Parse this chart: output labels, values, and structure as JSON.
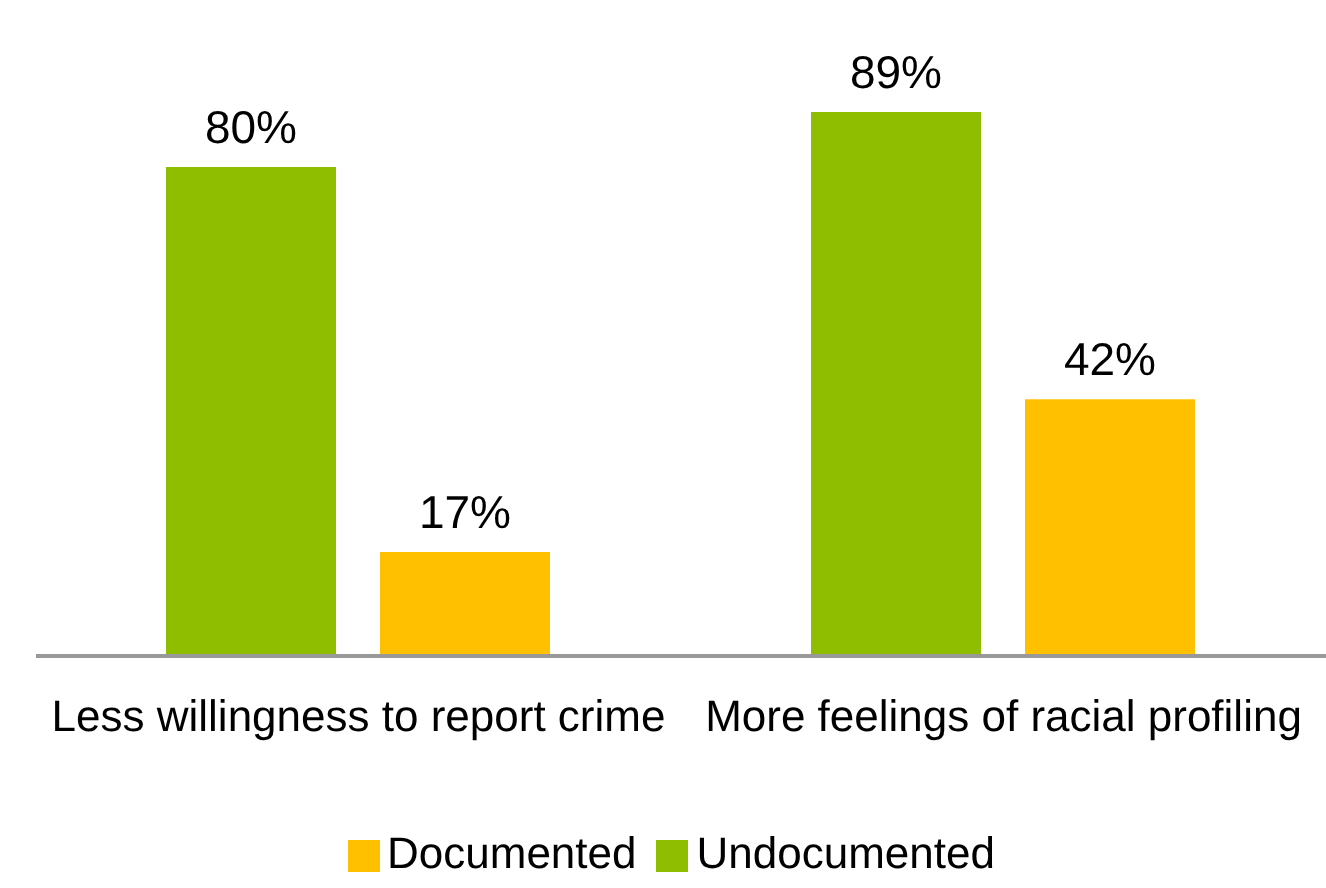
{
  "chart_data": {
    "type": "bar",
    "categories": [
      "Less willingness to report crime",
      "More feelings of racial profiling"
    ],
    "series": [
      {
        "name": "Undocumented",
        "color": "#8fbd00",
        "values": [
          80,
          89
        ],
        "value_labels": [
          "80%",
          "89%"
        ]
      },
      {
        "name": "Documented",
        "color": "#ffc000",
        "values": [
          17,
          42
        ],
        "value_labels": [
          "17%",
          "42%"
        ]
      }
    ],
    "legend": "bottom",
    "grid": false
  }
}
